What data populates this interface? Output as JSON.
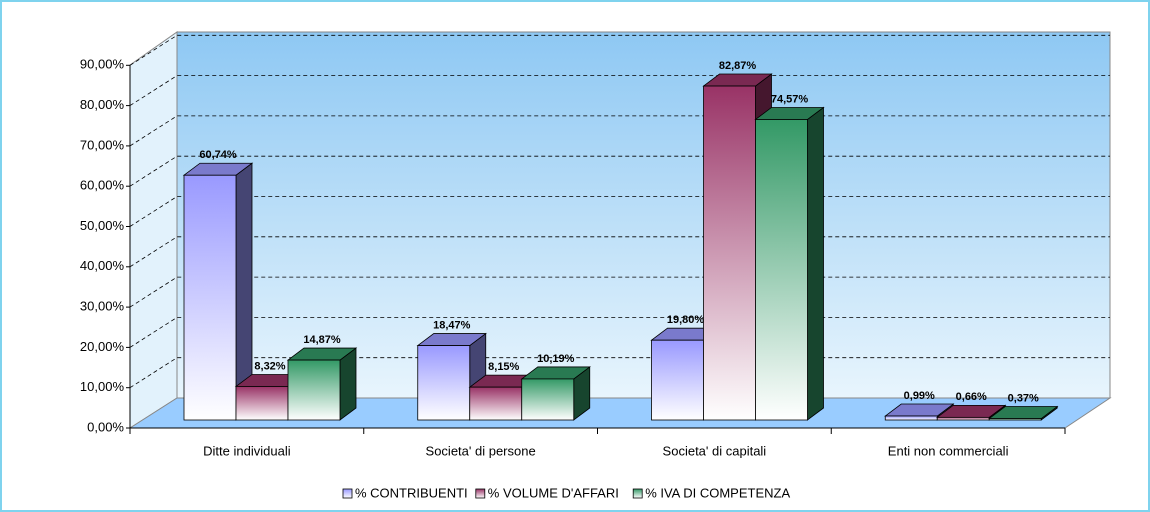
{
  "chart_data": {
    "type": "bar3d",
    "categories": [
      "Ditte individuali",
      "Societa' di persone",
      "Societa' di capitali",
      "Enti non commerciali"
    ],
    "series": [
      {
        "name": "% CONTRIBUENTI",
        "color": "#9999ff",
        "values": [
          60.74,
          18.47,
          19.8,
          0.99
        ],
        "value_labels": [
          "60,74%",
          "18,47%",
          "19,80%",
          "0,99%"
        ]
      },
      {
        "name": "% VOLUME D'AFFARI",
        "color": "#993366",
        "values": [
          8.32,
          8.15,
          82.87,
          0.66
        ],
        "value_labels": [
          "8,32%",
          "8,15%",
          "82,87%",
          "0,66%"
        ]
      },
      {
        "name": "% IVA DI COMPETENZA",
        "color": "#339966",
        "values": [
          14.87,
          10.19,
          74.57,
          0.37
        ],
        "value_labels": [
          "14,87%",
          "10,19%",
          "74,57%",
          "0,37%"
        ]
      }
    ],
    "ylim": [
      0,
      90
    ],
    "yticks": [
      {
        "value": 0,
        "label": "0,00%"
      },
      {
        "value": 10,
        "label": "10,00%"
      },
      {
        "value": 20,
        "label": "20,00%"
      },
      {
        "value": 30,
        "label": "30,00%"
      },
      {
        "value": 40,
        "label": "40,00%"
      },
      {
        "value": 50,
        "label": "50,00%"
      },
      {
        "value": 60,
        "label": "60,00%"
      },
      {
        "value": 70,
        "label": "70,00%"
      },
      {
        "value": 80,
        "label": "80,00%"
      },
      {
        "value": 90,
        "label": "90,00%"
      }
    ],
    "grid": true,
    "legend": "bottom"
  }
}
